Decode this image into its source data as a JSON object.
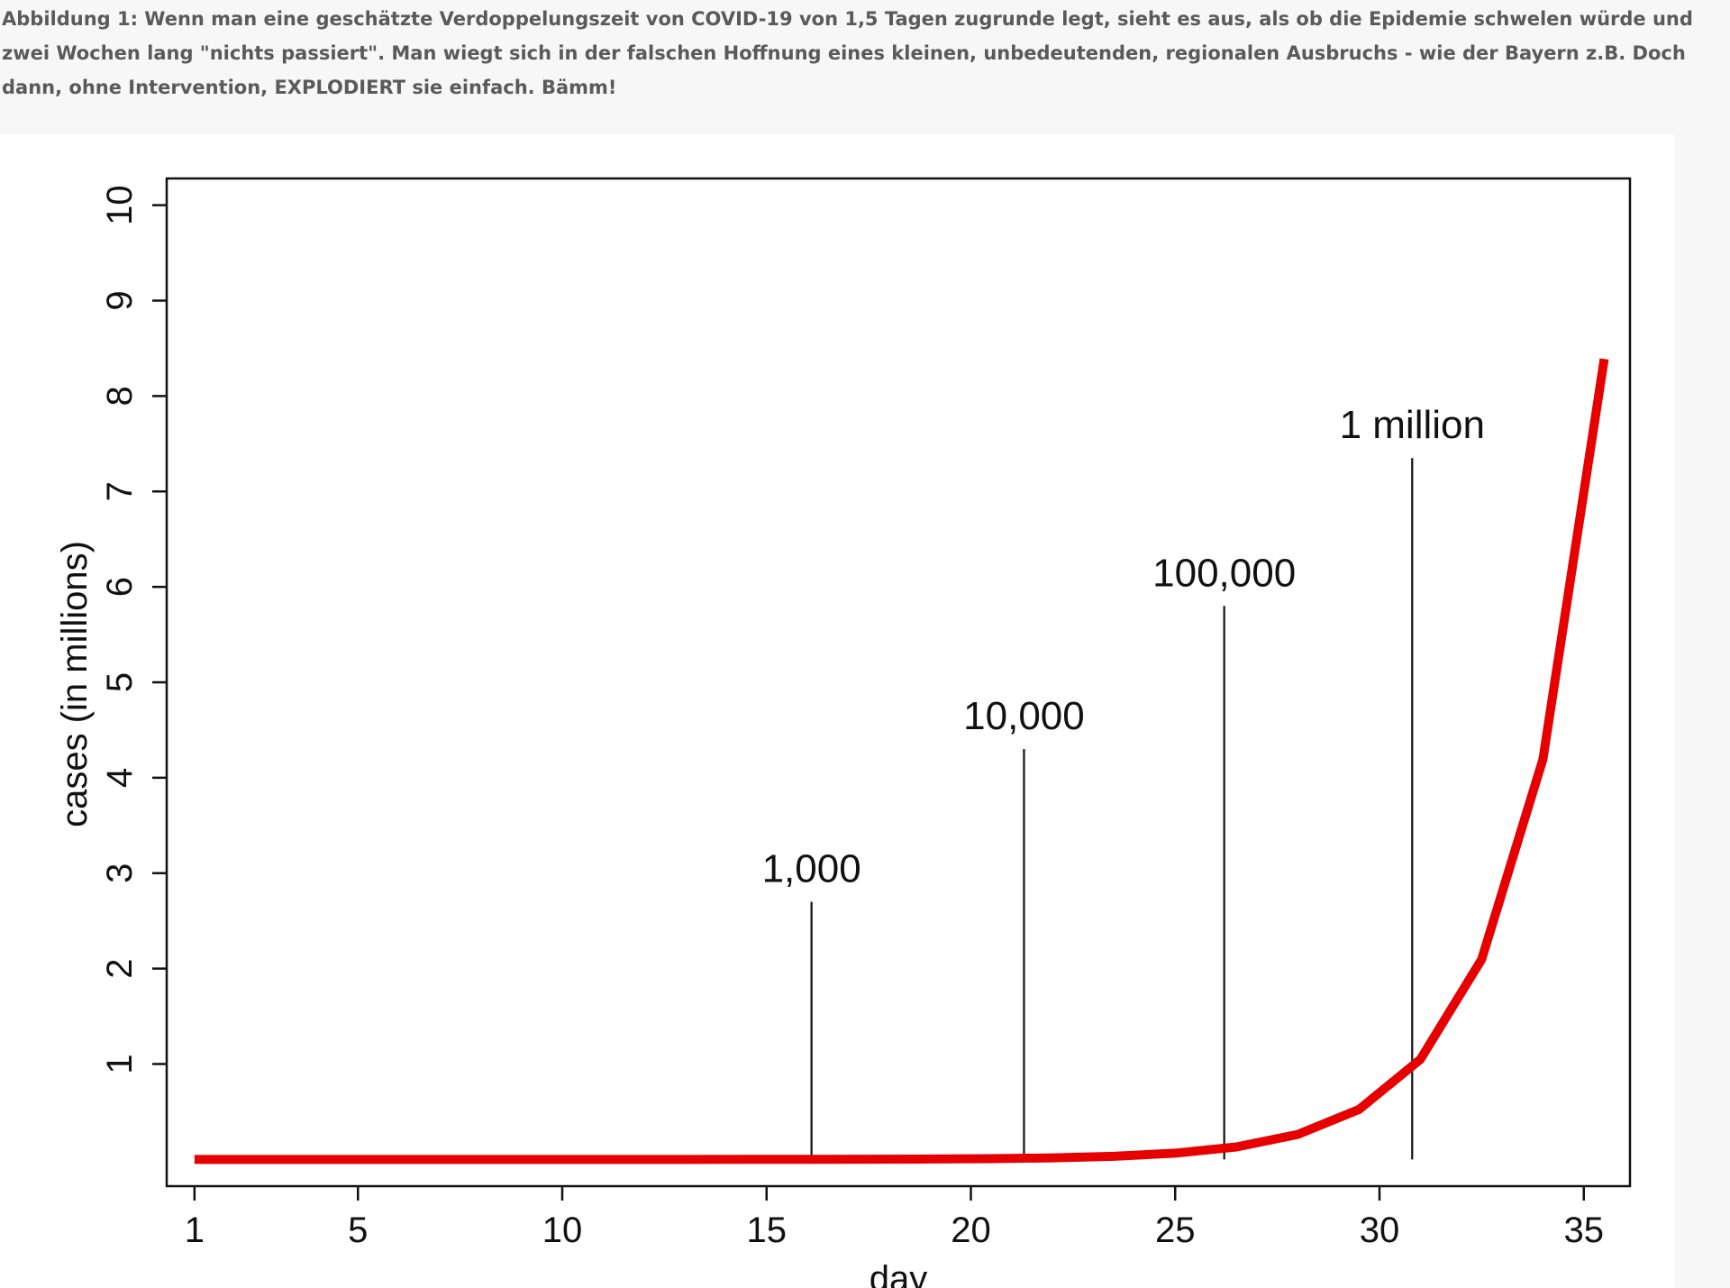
{
  "caption": "Abbildung 1: Wenn man eine geschätzte Verdoppelungszeit von COVID-19 von 1,5 Tagen zugrunde legt, sieht es aus, als ob die Epidemie schwelen würde und zwei Wochen lang \"nichts passiert\". Man wiegt sich in der falschen Hoffnung eines kleinen, unbedeutenden, regionalen Ausbruchs - wie der Bayern z.B. Doch dann, ohne Intervention, EXPLODIERT sie einfach. Bämm!",
  "chart_data": {
    "type": "line",
    "x_label": "day",
    "y_label": "cases (in millions)",
    "x": [
      1,
      2.5,
      4,
      5.5,
      7,
      8.5,
      10,
      11.5,
      13,
      14.5,
      16,
      17.5,
      19,
      20.5,
      22,
      23.5,
      25,
      26.5,
      28,
      29.5,
      31,
      32.5,
      34,
      35.5
    ],
    "series": [
      {
        "name": "cases",
        "color": "#e60000",
        "values": [
          1e-06,
          2e-06,
          4e-06,
          8e-06,
          1.6e-05,
          3.2e-05,
          6.4e-05,
          0.000128,
          0.000256,
          0.000512,
          0.001024,
          0.002048,
          0.004096,
          0.008192,
          0.016384,
          0.032768,
          0.065536,
          0.131072,
          0.262144,
          0.524288,
          1.048576,
          2.097152,
          4.194304,
          8.388608
        ]
      }
    ],
    "annotations": [
      {
        "text": "1,000",
        "x": 16.1,
        "y": 2.7
      },
      {
        "text": "10,000",
        "x": 21.3,
        "y": 4.3
      },
      {
        "text": "100,000",
        "x": 26.2,
        "y": 5.8
      },
      {
        "text": "1 million",
        "x": 30.8,
        "y": 7.35
      }
    ],
    "xlim": [
      0.32,
      36.13
    ],
    "xticks": [
      1,
      5,
      10,
      15,
      20,
      25,
      30,
      35
    ],
    "ylim": [
      -0.28,
      10.28
    ],
    "yticks": [
      1,
      2,
      3,
      4,
      5,
      6,
      7,
      8,
      9,
      10
    ]
  }
}
